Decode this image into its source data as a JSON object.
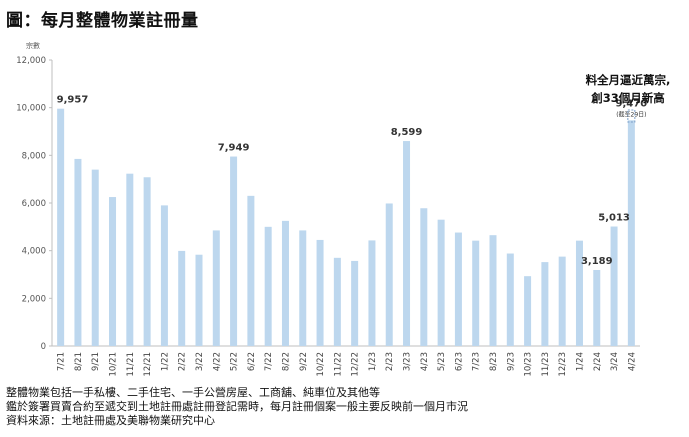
{
  "title": "圖：每月整體物業註冊量",
  "chart_data": {
    "type": "bar",
    "title": "圖：每月整體物業註冊量",
    "ylabel": "宗數",
    "xlabel": "",
    "ylim": [
      0,
      12000
    ],
    "yticks": [
      0,
      2000,
      4000,
      6000,
      8000,
      10000,
      12000
    ],
    "ytick_labels": [
      "0",
      "2,000",
      "4,000",
      "6,000",
      "8,000",
      "10,000",
      "12,000"
    ],
    "grid": false,
    "bar_color": "#bdd7ee",
    "categories": [
      "7/21",
      "8/21",
      "9/21",
      "10/21",
      "11/21",
      "12/21",
      "1/22",
      "2/22",
      "3/22",
      "4/22",
      "5/22",
      "6/22",
      "7/22",
      "8/22",
      "9/22",
      "10/22",
      "11/22",
      "12/22",
      "1/23",
      "2/23",
      "3/23",
      "4/23",
      "5/23",
      "6/23",
      "7/23",
      "8/23",
      "9/23",
      "10/23",
      "11/23",
      "12/23",
      "1/24",
      "2/24",
      "3/24",
      "4/24"
    ],
    "values": [
      9957,
      7850,
      7400,
      6250,
      7230,
      7080,
      5900,
      3990,
      3830,
      4850,
      7949,
      6300,
      5000,
      5250,
      4850,
      4450,
      3700,
      3570,
      4430,
      5980,
      8599,
      5780,
      5300,
      4760,
      4420,
      4650,
      3880,
      2930,
      3520,
      3750,
      4420,
      3189,
      5013,
      9470
    ],
    "data_labels": [
      {
        "index": 0,
        "text": "9,957"
      },
      {
        "index": 10,
        "text": "7,949"
      },
      {
        "index": 20,
        "text": "8,599"
      },
      {
        "index": 31,
        "text": "3,189"
      },
      {
        "index": 32,
        "text": "5,013"
      },
      {
        "index": 33,
        "text": "9,470"
      }
    ],
    "last_bar_note": "(截至29日)",
    "annotation": [
      "料全月逼近萬宗,",
      "創33個月新高"
    ]
  },
  "notes": [
    "整體物業包括一手私樓、二手住宅、一手公營房屋、工商舖、純車位及其他等",
    "鑑於簽署買賣合約至遞交到土地註冊處註冊登記需時，每月註冊個案一般主要反映前一個月市況",
    "資料來源：土地註冊處及美聯物業研究中心"
  ]
}
